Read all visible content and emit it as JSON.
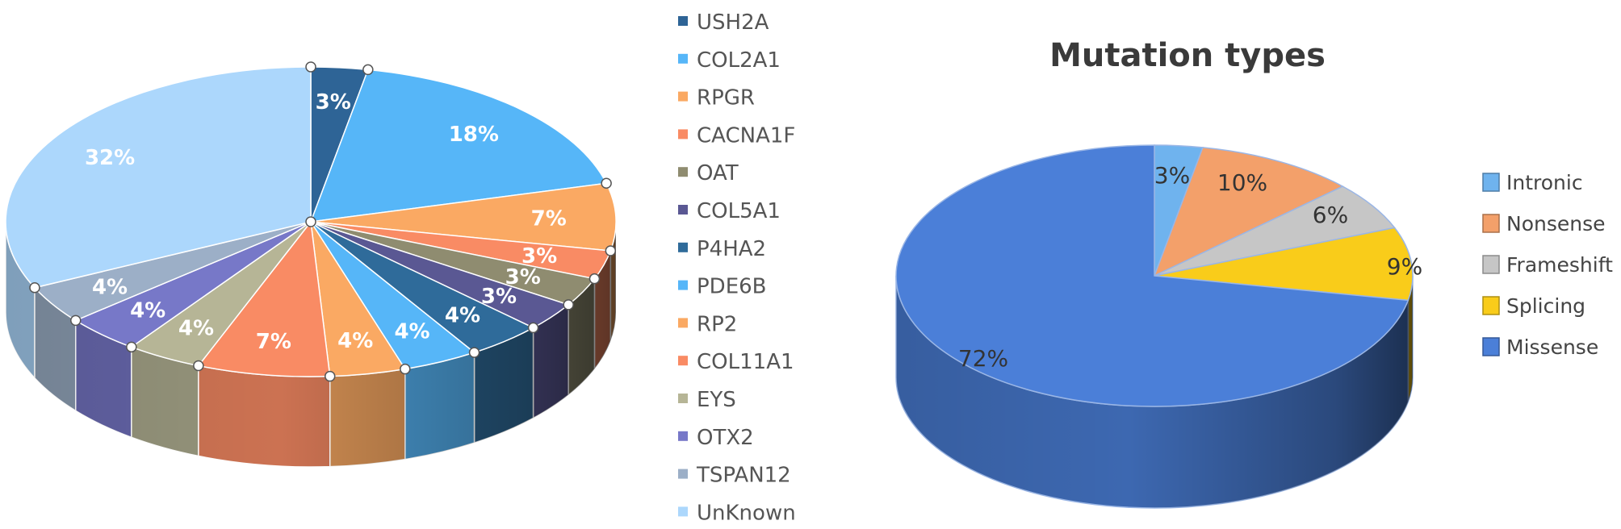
{
  "chart_data": [
    {
      "type": "pie",
      "title": "",
      "label_color": "#ffffff",
      "slices": [
        {
          "label": "USH2A",
          "value": 3,
          "value_label": "3%",
          "color": "#2e6496"
        },
        {
          "label": "COL2A1",
          "value": 18,
          "value_label": "18%",
          "color": "#56b6f8"
        },
        {
          "label": "RPGR",
          "value": 7,
          "value_label": "7%",
          "color": "#faa963"
        },
        {
          "label": "CACNA1F",
          "value": 3,
          "value_label": "3%",
          "color": "#f98b64"
        },
        {
          "label": "OAT",
          "value": 3,
          "value_label": "3%",
          "color": "#8f8c70"
        },
        {
          "label": "COL5A1",
          "value": 3,
          "value_label": "3%",
          "color": "#5a5893"
        },
        {
          "label": "P4HA2",
          "value": 4,
          "value_label": "4%",
          "color": "#2f6b9a"
        },
        {
          "label": "PDE6B",
          "value": 4,
          "value_label": "4%",
          "color": "#56b6f8"
        },
        {
          "label": "RP2",
          "value": 4,
          "value_label": "4%",
          "color": "#faa963"
        },
        {
          "label": "COL11A1",
          "value": 7,
          "value_label": "7%",
          "color": "#f98b64"
        },
        {
          "label": "EYS",
          "value": 4,
          "value_label": "4%",
          "color": "#b6b596"
        },
        {
          "label": "OTX2",
          "value": 4,
          "value_label": "4%",
          "color": "#7778c8"
        },
        {
          "label": "TSPAN12",
          "value": 4,
          "value_label": "4%",
          "color": "#9cafc7"
        },
        {
          "label": "UnKnown",
          "value": 32,
          "value_label": "32%",
          "color": "#acd7fc"
        }
      ],
      "legend_position": "right"
    },
    {
      "type": "pie",
      "title": "Mutation types",
      "label_color": "#333333",
      "slices": [
        {
          "label": "Intronic",
          "value": 3,
          "value_label": "3%",
          "color": "#6fb3ee"
        },
        {
          "label": "Nonsense",
          "value": 10,
          "value_label": "10%",
          "color": "#f3a06a"
        },
        {
          "label": "Frameshift",
          "value": 6,
          "value_label": "6%",
          "color": "#c6c6c6"
        },
        {
          "label": "Splicing",
          "value": 9,
          "value_label": "9%",
          "color": "#f9cc1a"
        },
        {
          "label": "Missense",
          "value": 72,
          "value_label": "72%",
          "color": "#4b7fd8"
        }
      ],
      "legend_position": "right"
    }
  ]
}
